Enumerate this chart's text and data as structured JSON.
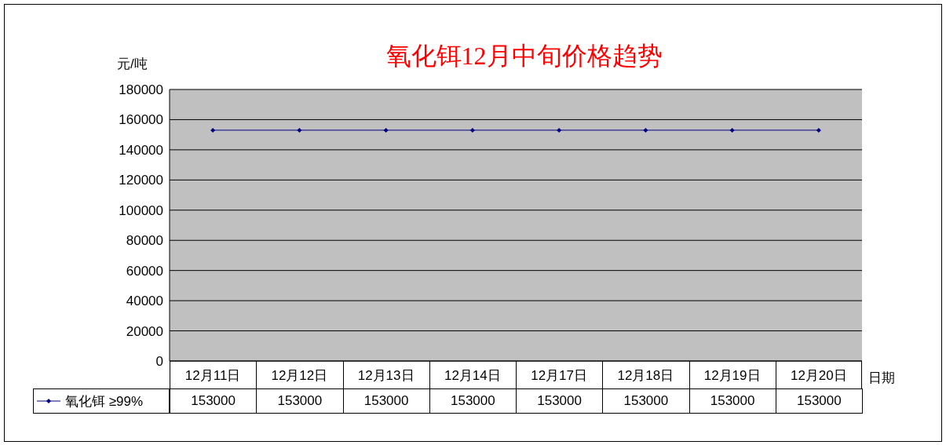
{
  "chart_data": {
    "type": "line",
    "title": "氧化铒12月中旬价格趋势",
    "ylabel": "元/吨",
    "xlabel": "日期",
    "categories": [
      "12月11日",
      "12月12日",
      "12月13日",
      "12月14日",
      "12月17日",
      "12月18日",
      "12月19日",
      "12月20日"
    ],
    "series": [
      {
        "name": "氧化铒 ≥99%",
        "color": "#000080",
        "values": [
          153000,
          153000,
          153000,
          153000,
          153000,
          153000,
          153000,
          153000
        ]
      }
    ],
    "ylim": [
      0,
      180000
    ],
    "yticks": [
      0,
      20000,
      40000,
      60000,
      80000,
      100000,
      120000,
      140000,
      160000,
      180000
    ],
    "grid": "y",
    "legend": "bottom",
    "marker": "diamond",
    "line_style": "solid",
    "data_labels": true
  }
}
